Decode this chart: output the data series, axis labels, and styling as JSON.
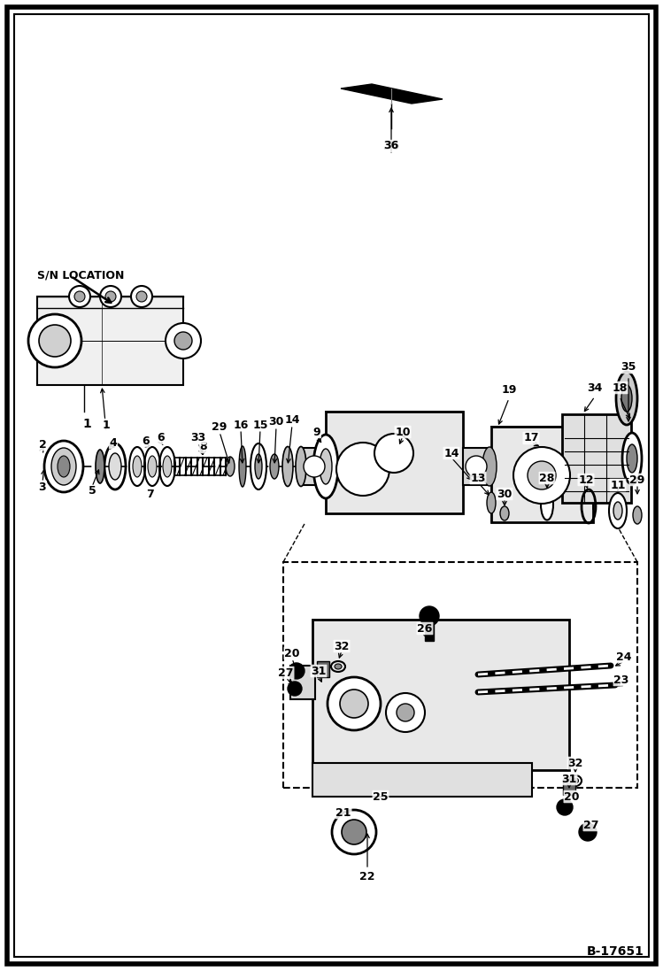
{
  "fig_width": 7.49,
  "fig_height": 10.97,
  "dpi": 100,
  "bg_color": "#ffffff",
  "border_color": "#000000",
  "title_ref": "B-17651",
  "sn_label": "S/N LOCATION"
}
